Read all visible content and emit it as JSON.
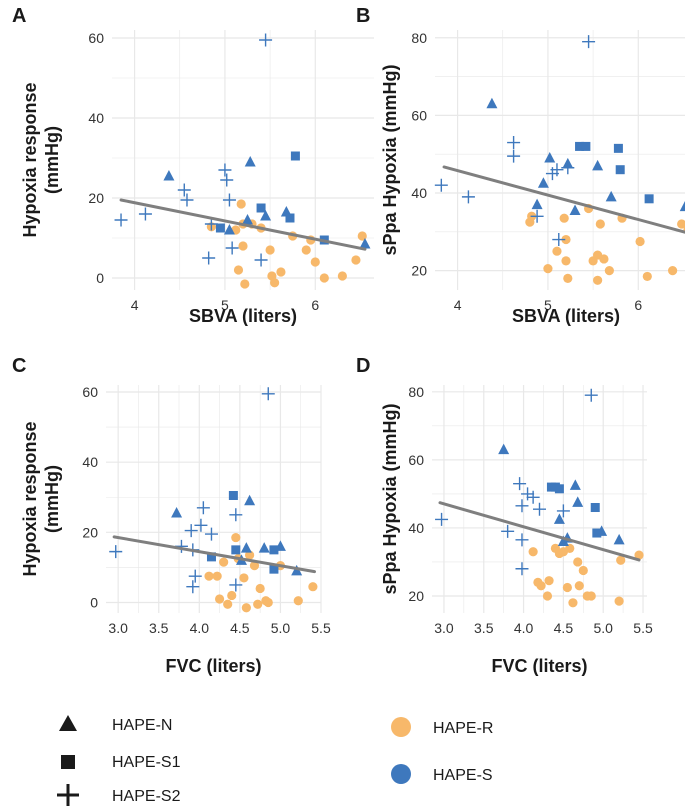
{
  "colors": {
    "hape_r": "#F7B86A",
    "hape_s": "#3E78BD",
    "fit_line": "#7F7F7F",
    "grid": "#E8E8E8",
    "axis_text": "#333333",
    "shape_legend": "#1A1A1A"
  },
  "legend": {
    "shape_title_hape_n": "HAPE-N",
    "shape_title_hape_s1": "HAPE-S1",
    "shape_title_hape_s2": "HAPE-S2",
    "color_title_hape_r": "HAPE-R",
    "color_title_hape_s": "HAPE-S"
  },
  "chart_data": [
    {
      "panel": "A",
      "type": "scatter",
      "xlabel": "SBVA (liters)",
      "ylabel": "Hypoxia response (mmHg)",
      "ylabel_lines": [
        "Hypoxia response",
        "(mmHg)"
      ],
      "xlim": [
        3.75,
        6.65
      ],
      "ylim": [
        -3,
        62
      ],
      "xticks": [
        4,
        5,
        6
      ],
      "yticks": [
        0,
        20,
        40,
        60
      ],
      "fit": {
        "x": [
          3.85,
          6.55
        ],
        "y": [
          19.5,
          7.2
        ]
      },
      "points": [
        {
          "x": 5.12,
          "y": 12.0,
          "g": "R"
        },
        {
          "x": 5.18,
          "y": 18.5,
          "g": "R"
        },
        {
          "x": 5.2,
          "y": 13.5,
          "g": "R"
        },
        {
          "x": 5.15,
          "y": 2.0,
          "g": "R"
        },
        {
          "x": 5.22,
          "y": -1.5,
          "g": "R"
        },
        {
          "x": 5.2,
          "y": 8.0,
          "g": "R"
        },
        {
          "x": 5.3,
          "y": 13.5,
          "g": "R"
        },
        {
          "x": 5.4,
          "y": 12.5,
          "g": "R"
        },
        {
          "x": 5.5,
          "y": 7.0,
          "g": "R"
        },
        {
          "x": 5.52,
          "y": 0.5,
          "g": "R"
        },
        {
          "x": 5.55,
          "y": -1.2,
          "g": "R"
        },
        {
          "x": 5.62,
          "y": 1.5,
          "g": "R"
        },
        {
          "x": 5.75,
          "y": 10.5,
          "g": "R"
        },
        {
          "x": 5.95,
          "y": 9.5,
          "g": "R"
        },
        {
          "x": 6.0,
          "y": 4.0,
          "g": "R"
        },
        {
          "x": 6.1,
          "y": 0.0,
          "g": "R"
        },
        {
          "x": 6.3,
          "y": 0.5,
          "g": "R"
        },
        {
          "x": 6.45,
          "y": 4.5,
          "g": "R"
        },
        {
          "x": 6.52,
          "y": 10.5,
          "g": "R"
        },
        {
          "x": 4.85,
          "y": 12.8,
          "g": "R"
        },
        {
          "x": 5.9,
          "y": 7.0,
          "g": "R"
        },
        {
          "x": 4.38,
          "y": 25.5,
          "g": "N"
        },
        {
          "x": 5.28,
          "y": 29.0,
          "g": "N"
        },
        {
          "x": 5.05,
          "y": 12.0,
          "g": "N"
        },
        {
          "x": 5.25,
          "y": 14.5,
          "g": "N"
        },
        {
          "x": 5.45,
          "y": 15.5,
          "g": "N"
        },
        {
          "x": 5.68,
          "y": 16.5,
          "g": "N"
        },
        {
          "x": 6.55,
          "y": 8.5,
          "g": "N"
        },
        {
          "x": 5.78,
          "y": 30.5,
          "g": "S1"
        },
        {
          "x": 5.4,
          "y": 17.5,
          "g": "S1"
        },
        {
          "x": 5.72,
          "y": 15.0,
          "g": "S1"
        },
        {
          "x": 6.1,
          "y": 9.5,
          "g": "S1"
        },
        {
          "x": 4.95,
          "y": 12.5,
          "g": "S1"
        },
        {
          "x": 3.85,
          "y": 14.5,
          "g": "S2"
        },
        {
          "x": 4.12,
          "y": 16.0,
          "g": "S2"
        },
        {
          "x": 4.55,
          "y": 22.0,
          "g": "S2"
        },
        {
          "x": 4.58,
          "y": 19.5,
          "g": "S2"
        },
        {
          "x": 4.85,
          "y": 13.5,
          "g": "S2"
        },
        {
          "x": 4.82,
          "y": 5.0,
          "g": "S2"
        },
        {
          "x": 5.0,
          "y": 27.0,
          "g": "S2"
        },
        {
          "x": 5.02,
          "y": 24.5,
          "g": "S2"
        },
        {
          "x": 5.05,
          "y": 19.5,
          "g": "S2"
        },
        {
          "x": 5.08,
          "y": 7.5,
          "g": "S2"
        },
        {
          "x": 5.4,
          "y": 4.5,
          "g": "S2"
        },
        {
          "x": 5.45,
          "y": 59.5,
          "g": "S2"
        }
      ]
    },
    {
      "panel": "B",
      "type": "scatter",
      "xlabel": "SBVA (liters)",
      "ylabel": "sPpa Hypoxia (mmHg)",
      "ylabel_lines": [
        "sPpa Hypoxia (mmHg)"
      ],
      "xlim": [
        3.75,
        6.65
      ],
      "ylim": [
        15,
        82
      ],
      "xticks": [
        4,
        5,
        6
      ],
      "yticks": [
        20,
        40,
        60,
        80
      ],
      "fit": {
        "x": [
          3.85,
          6.55
        ],
        "y": [
          46.7,
          29.7
        ]
      },
      "points": [
        {
          "x": 4.82,
          "y": 34.0,
          "g": "R"
        },
        {
          "x": 4.8,
          "y": 32.5,
          "g": "R"
        },
        {
          "x": 5.0,
          "y": 20.5,
          "g": "R"
        },
        {
          "x": 5.1,
          "y": 25.0,
          "g": "R"
        },
        {
          "x": 5.18,
          "y": 33.5,
          "g": "R"
        },
        {
          "x": 5.2,
          "y": 28.0,
          "g": "R"
        },
        {
          "x": 5.2,
          "y": 22.5,
          "g": "R"
        },
        {
          "x": 5.22,
          "y": 18.0,
          "g": "R"
        },
        {
          "x": 5.45,
          "y": 36.0,
          "g": "R"
        },
        {
          "x": 5.5,
          "y": 22.5,
          "g": "R"
        },
        {
          "x": 5.55,
          "y": 24.0,
          "g": "R"
        },
        {
          "x": 5.58,
          "y": 32.0,
          "g": "R"
        },
        {
          "x": 5.62,
          "y": 23.0,
          "g": "R"
        },
        {
          "x": 5.68,
          "y": 20.0,
          "g": "R"
        },
        {
          "x": 5.82,
          "y": 33.5,
          "g": "R"
        },
        {
          "x": 6.02,
          "y": 27.5,
          "g": "R"
        },
        {
          "x": 6.1,
          "y": 18.5,
          "g": "R"
        },
        {
          "x": 6.38,
          "y": 20.0,
          "g": "R"
        },
        {
          "x": 6.48,
          "y": 32.0,
          "g": "R"
        },
        {
          "x": 6.55,
          "y": 30.5,
          "g": "R"
        },
        {
          "x": 5.55,
          "y": 17.5,
          "g": "R"
        },
        {
          "x": 4.38,
          "y": 63.0,
          "g": "N"
        },
        {
          "x": 4.95,
          "y": 42.5,
          "g": "N"
        },
        {
          "x": 5.02,
          "y": 49.0,
          "g": "N"
        },
        {
          "x": 5.22,
          "y": 47.5,
          "g": "N"
        },
        {
          "x": 5.3,
          "y": 35.5,
          "g": "N"
        },
        {
          "x": 5.55,
          "y": 47.0,
          "g": "N"
        },
        {
          "x": 5.7,
          "y": 39.0,
          "g": "N"
        },
        {
          "x": 6.52,
          "y": 36.5,
          "g": "N"
        },
        {
          "x": 4.88,
          "y": 37.0,
          "g": "N"
        },
        {
          "x": 5.35,
          "y": 52.0,
          "g": "S1"
        },
        {
          "x": 5.42,
          "y": 52.0,
          "g": "S1"
        },
        {
          "x": 5.78,
          "y": 51.5,
          "g": "S1"
        },
        {
          "x": 5.8,
          "y": 46.0,
          "g": "S1"
        },
        {
          "x": 6.12,
          "y": 38.5,
          "g": "S1"
        },
        {
          "x": 3.82,
          "y": 42.0,
          "g": "S2"
        },
        {
          "x": 4.12,
          "y": 39.0,
          "g": "S2"
        },
        {
          "x": 4.62,
          "y": 53.0,
          "g": "S2"
        },
        {
          "x": 4.62,
          "y": 49.5,
          "g": "S2"
        },
        {
          "x": 4.88,
          "y": 34.0,
          "g": "S2"
        },
        {
          "x": 5.05,
          "y": 45.0,
          "g": "S2"
        },
        {
          "x": 5.1,
          "y": 46.0,
          "g": "S2"
        },
        {
          "x": 5.12,
          "y": 28.0,
          "g": "S2"
        },
        {
          "x": 5.22,
          "y": 46.5,
          "g": "S2"
        },
        {
          "x": 5.45,
          "y": 79.0,
          "g": "S2"
        }
      ]
    },
    {
      "panel": "C",
      "type": "scatter",
      "xlabel": "FVC (liters)",
      "ylabel": "Hypoxia response (mmHg)",
      "ylabel_lines": [
        "Hypoxia response",
        "(mmHg)"
      ],
      "xlim": [
        2.85,
        5.5
      ],
      "ylim": [
        -3,
        62
      ],
      "xticks": [
        3.0,
        3.5,
        4.0,
        4.5,
        5.0,
        5.5
      ],
      "ytick_format": "int",
      "xtick_format": "1dp",
      "yticks": [
        0,
        20,
        40,
        60
      ],
      "fit": {
        "x": [
          2.95,
          5.42
        ],
        "y": [
          18.7,
          8.8
        ]
      },
      "points": [
        {
          "x": 4.12,
          "y": 7.5,
          "g": "R"
        },
        {
          "x": 4.22,
          "y": 7.5,
          "g": "R"
        },
        {
          "x": 4.25,
          "y": 1.0,
          "g": "R"
        },
        {
          "x": 4.3,
          "y": 11.5,
          "g": "R"
        },
        {
          "x": 4.35,
          "y": -0.5,
          "g": "R"
        },
        {
          "x": 4.4,
          "y": 2.0,
          "g": "R"
        },
        {
          "x": 4.45,
          "y": 18.5,
          "g": "R"
        },
        {
          "x": 4.48,
          "y": 12.5,
          "g": "R"
        },
        {
          "x": 4.55,
          "y": 7.0,
          "g": "R"
        },
        {
          "x": 4.58,
          "y": -1.5,
          "g": "R"
        },
        {
          "x": 4.62,
          "y": 13.5,
          "g": "R"
        },
        {
          "x": 4.68,
          "y": 10.5,
          "g": "R"
        },
        {
          "x": 4.72,
          "y": -0.5,
          "g": "R"
        },
        {
          "x": 4.75,
          "y": 4.0,
          "g": "R"
        },
        {
          "x": 4.85,
          "y": 0.0,
          "g": "R"
        },
        {
          "x": 5.0,
          "y": 10.5,
          "g": "R"
        },
        {
          "x": 5.22,
          "y": 0.5,
          "g": "R"
        },
        {
          "x": 5.4,
          "y": 4.5,
          "g": "R"
        },
        {
          "x": 4.82,
          "y": 0.5,
          "g": "R"
        },
        {
          "x": 3.72,
          "y": 25.5,
          "g": "N"
        },
        {
          "x": 4.62,
          "y": 29.0,
          "g": "N"
        },
        {
          "x": 4.52,
          "y": 12.0,
          "g": "N"
        },
        {
          "x": 4.58,
          "y": 15.5,
          "g": "N"
        },
        {
          "x": 4.8,
          "y": 15.5,
          "g": "N"
        },
        {
          "x": 5.0,
          "y": 16.0,
          "g": "N"
        },
        {
          "x": 5.2,
          "y": 9.0,
          "g": "N"
        },
        {
          "x": 4.42,
          "y": 30.5,
          "g": "S1"
        },
        {
          "x": 4.15,
          "y": 13.0,
          "g": "S1"
        },
        {
          "x": 4.92,
          "y": 15.0,
          "g": "S1"
        },
        {
          "x": 4.92,
          "y": 9.5,
          "g": "S1"
        },
        {
          "x": 4.45,
          "y": 15.0,
          "g": "S1"
        },
        {
          "x": 2.97,
          "y": 14.5,
          "g": "S2"
        },
        {
          "x": 3.78,
          "y": 16.0,
          "g": "S2"
        },
        {
          "x": 3.9,
          "y": 20.5,
          "g": "S2"
        },
        {
          "x": 3.92,
          "y": 15.0,
          "g": "S2"
        },
        {
          "x": 3.95,
          "y": 7.5,
          "g": "S2"
        },
        {
          "x": 3.92,
          "y": 4.5,
          "g": "S2"
        },
        {
          "x": 4.02,
          "y": 22.0,
          "g": "S2"
        },
        {
          "x": 4.05,
          "y": 27.0,
          "g": "S2"
        },
        {
          "x": 4.15,
          "y": 19.5,
          "g": "S2"
        },
        {
          "x": 4.45,
          "y": 25.0,
          "g": "S2"
        },
        {
          "x": 4.45,
          "y": 5.0,
          "g": "S2"
        },
        {
          "x": 4.85,
          "y": 59.5,
          "g": "S2"
        }
      ]
    },
    {
      "panel": "D",
      "type": "scatter",
      "xlabel": "FVC (liters)",
      "ylabel": "sPpa Hypoxia (mmHg)",
      "ylabel_lines": [
        "sPpa Hypoxia (mmHg)"
      ],
      "xlim": [
        2.85,
        5.55
      ],
      "ylim": [
        15,
        82
      ],
      "xticks": [
        3.0,
        3.5,
        4.0,
        4.5,
        5.0,
        5.5
      ],
      "xtick_format": "1dp",
      "yticks": [
        20,
        40,
        60,
        80
      ],
      "fit": {
        "x": [
          2.95,
          5.45
        ],
        "y": [
          47.4,
          30.6
        ]
      },
      "points": [
        {
          "x": 4.12,
          "y": 33.0,
          "g": "R"
        },
        {
          "x": 4.18,
          "y": 24.0,
          "g": "R"
        },
        {
          "x": 4.22,
          "y": 23.0,
          "g": "R"
        },
        {
          "x": 4.3,
          "y": 20.0,
          "g": "R"
        },
        {
          "x": 4.32,
          "y": 24.5,
          "g": "R"
        },
        {
          "x": 4.4,
          "y": 34.0,
          "g": "R"
        },
        {
          "x": 4.45,
          "y": 32.5,
          "g": "R"
        },
        {
          "x": 4.5,
          "y": 33.0,
          "g": "R"
        },
        {
          "x": 4.55,
          "y": 22.5,
          "g": "R"
        },
        {
          "x": 4.58,
          "y": 34.0,
          "g": "R"
        },
        {
          "x": 4.62,
          "y": 18.0,
          "g": "R"
        },
        {
          "x": 4.7,
          "y": 23.0,
          "g": "R"
        },
        {
          "x": 4.75,
          "y": 27.5,
          "g": "R"
        },
        {
          "x": 4.8,
          "y": 20.0,
          "g": "R"
        },
        {
          "x": 4.85,
          "y": 20.0,
          "g": "R"
        },
        {
          "x": 5.2,
          "y": 18.5,
          "g": "R"
        },
        {
          "x": 5.22,
          "y": 30.5,
          "g": "R"
        },
        {
          "x": 5.45,
          "y": 32.0,
          "g": "R"
        },
        {
          "x": 4.68,
          "y": 30.0,
          "g": "R"
        },
        {
          "x": 3.75,
          "y": 63.0,
          "g": "N"
        },
        {
          "x": 4.45,
          "y": 42.5,
          "g": "N"
        },
        {
          "x": 4.5,
          "y": 36.0,
          "g": "N"
        },
        {
          "x": 4.65,
          "y": 52.5,
          "g": "N"
        },
        {
          "x": 4.68,
          "y": 47.5,
          "g": "N"
        },
        {
          "x": 4.98,
          "y": 39.0,
          "g": "N"
        },
        {
          "x": 5.2,
          "y": 36.5,
          "g": "N"
        },
        {
          "x": 4.55,
          "y": 37.0,
          "g": "N"
        },
        {
          "x": 4.35,
          "y": 52.0,
          "g": "S1"
        },
        {
          "x": 4.4,
          "y": 52.0,
          "g": "S1"
        },
        {
          "x": 4.45,
          "y": 51.5,
          "g": "S1"
        },
        {
          "x": 4.9,
          "y": 46.0,
          "g": "S1"
        },
        {
          "x": 4.92,
          "y": 38.5,
          "g": "S1"
        },
        {
          "x": 2.97,
          "y": 42.5,
          "g": "S2"
        },
        {
          "x": 3.8,
          "y": 39.0,
          "g": "S2"
        },
        {
          "x": 3.95,
          "y": 53.0,
          "g": "S2"
        },
        {
          "x": 3.98,
          "y": 46.5,
          "g": "S2"
        },
        {
          "x": 3.98,
          "y": 36.5,
          "g": "S2"
        },
        {
          "x": 3.98,
          "y": 28.0,
          "g": "S2"
        },
        {
          "x": 4.05,
          "y": 50.0,
          "g": "S2"
        },
        {
          "x": 4.12,
          "y": 49.0,
          "g": "S2"
        },
        {
          "x": 4.2,
          "y": 45.5,
          "g": "S2"
        },
        {
          "x": 4.5,
          "y": 45.0,
          "g": "S2"
        },
        {
          "x": 4.85,
          "y": 79.0,
          "g": "S2"
        }
      ]
    }
  ]
}
